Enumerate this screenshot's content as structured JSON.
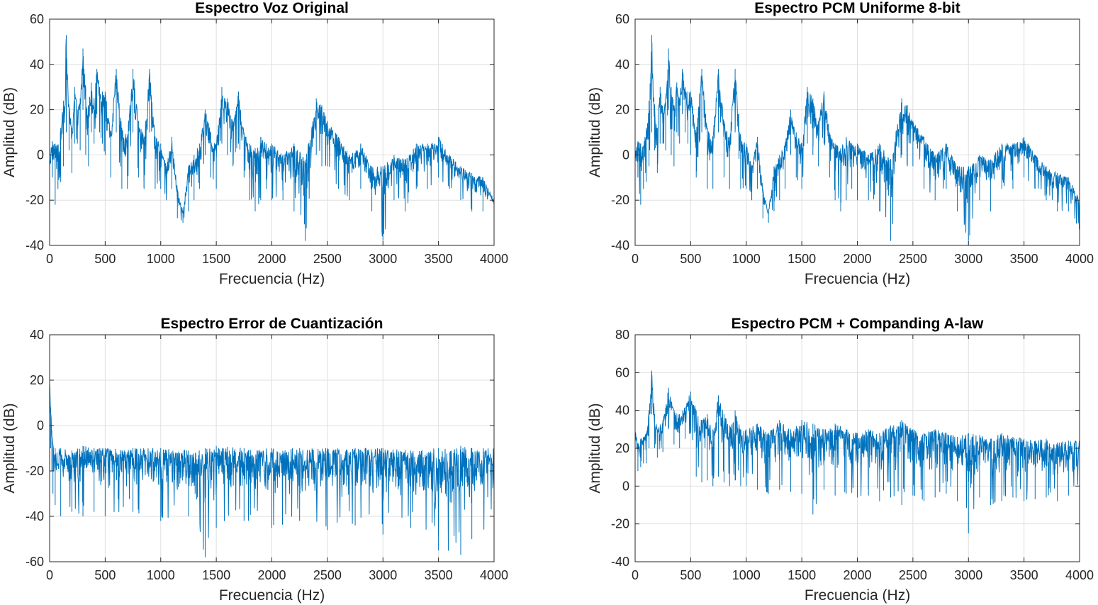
{
  "figure": {
    "background": "#ffffff"
  },
  "chart_data": [
    {
      "type": "line",
      "title": "Espectro Voz Original",
      "xlabel": "Frecuencia (Hz)",
      "ylabel": "Amplitud (dB)",
      "xlim": [
        0,
        4000
      ],
      "ylim": [
        -40,
        60
      ],
      "xticks": [
        0,
        500,
        1000,
        1500,
        2000,
        2500,
        3000,
        3500,
        4000
      ],
      "yticks": [
        -40,
        -20,
        0,
        20,
        40,
        60
      ],
      "grid": true,
      "color": "#0072bd",
      "x": [
        0,
        25,
        50,
        75,
        100,
        125,
        150,
        175,
        200,
        225,
        250,
        275,
        300,
        325,
        350,
        375,
        400,
        425,
        450,
        475,
        500,
        550,
        600,
        650,
        700,
        750,
        800,
        850,
        900,
        950,
        1000,
        1050,
        1100,
        1150,
        1200,
        1250,
        1300,
        1350,
        1400,
        1450,
        1500,
        1550,
        1600,
        1650,
        1700,
        1750,
        1800,
        1850,
        1900,
        1950,
        2000,
        2100,
        2200,
        2300,
        2400,
        2450,
        2500,
        2600,
        2700,
        2800,
        2900,
        3000,
        3100,
        3200,
        3300,
        3400,
        3500,
        3600,
        3700,
        3800,
        3900,
        4000
      ],
      "values": [
        2,
        6,
        5,
        4,
        12,
        24,
        53,
        22,
        12,
        30,
        20,
        25,
        47,
        30,
        22,
        32,
        25,
        38,
        30,
        28,
        28,
        10,
        38,
        12,
        8,
        38,
        15,
        8,
        38,
        8,
        5,
        -5,
        8,
        -15,
        -25,
        -5,
        0,
        5,
        20,
        10,
        5,
        30,
        25,
        15,
        28,
        10,
        5,
        3,
        8,
        5,
        5,
        0,
        5,
        -2,
        25,
        22,
        15,
        8,
        0,
        5,
        -5,
        -5,
        0,
        -2,
        5,
        5,
        8,
        0,
        -5,
        -8,
        -10,
        -20
      ],
      "lower": [
        -20,
        -10,
        -22,
        -15,
        -12,
        -5,
        10,
        2,
        -8,
        5,
        5,
        2,
        20,
        0,
        -5,
        10,
        5,
        18,
        10,
        5,
        0,
        -10,
        10,
        -15,
        -15,
        10,
        -10,
        -15,
        10,
        -15,
        -15,
        -20,
        -15,
        -28,
        -30,
        -25,
        -20,
        -15,
        0,
        -10,
        -15,
        5,
        0,
        -5,
        5,
        -10,
        -20,
        -25,
        -20,
        -15,
        -20,
        -20,
        -25,
        -38,
        0,
        -5,
        -5,
        -15,
        -20,
        -15,
        -25,
        -38,
        -20,
        -25,
        -15,
        -15,
        -10,
        -15,
        -20,
        -25,
        -25,
        -25
      ],
      "annotations": []
    },
    {
      "type": "line",
      "title": "Espectro PCM Uniforme 8-bit",
      "xlabel": "Frecuencia (Hz)",
      "ylabel": "Amplitud (dB)",
      "xlim": [
        0,
        4000
      ],
      "ylim": [
        -40,
        60
      ],
      "xticks": [
        0,
        500,
        1000,
        1500,
        2000,
        2500,
        3000,
        3500,
        4000
      ],
      "yticks": [
        -40,
        -20,
        0,
        20,
        40,
        60
      ],
      "grid": true,
      "color": "#0072bd",
      "x": [
        0,
        25,
        50,
        75,
        100,
        125,
        150,
        175,
        200,
        225,
        250,
        275,
        300,
        325,
        350,
        375,
        400,
        425,
        450,
        475,
        500,
        550,
        600,
        650,
        700,
        750,
        800,
        850,
        900,
        950,
        1000,
        1050,
        1100,
        1150,
        1200,
        1250,
        1300,
        1350,
        1400,
        1450,
        1500,
        1550,
        1600,
        1650,
        1700,
        1750,
        1800,
        1850,
        1900,
        1950,
        2000,
        2100,
        2200,
        2300,
        2400,
        2450,
        2500,
        2600,
        2700,
        2800,
        2900,
        3000,
        3100,
        3200,
        3300,
        3400,
        3500,
        3600,
        3700,
        3800,
        3900,
        4000
      ],
      "values": [
        2,
        6,
        5,
        4,
        12,
        24,
        53,
        22,
        12,
        30,
        20,
        25,
        47,
        30,
        22,
        32,
        25,
        38,
        30,
        28,
        28,
        10,
        38,
        12,
        8,
        38,
        15,
        8,
        38,
        8,
        5,
        -5,
        8,
        -15,
        -25,
        -5,
        0,
        5,
        20,
        10,
        5,
        30,
        25,
        15,
        28,
        10,
        5,
        3,
        8,
        5,
        5,
        0,
        5,
        -2,
        25,
        22,
        15,
        8,
        0,
        5,
        -5,
        -5,
        0,
        -2,
        5,
        5,
        8,
        0,
        -5,
        -8,
        -10,
        -20
      ],
      "lower": [
        -20,
        -10,
        -22,
        -15,
        -12,
        -5,
        10,
        2,
        -8,
        5,
        5,
        2,
        20,
        0,
        -5,
        10,
        5,
        18,
        10,
        5,
        0,
        -10,
        10,
        -15,
        -15,
        10,
        -10,
        -15,
        10,
        -15,
        -15,
        -20,
        -15,
        -28,
        -30,
        -25,
        -20,
        -15,
        0,
        -10,
        -15,
        5,
        0,
        -5,
        5,
        -10,
        -20,
        -25,
        -20,
        -15,
        -20,
        -20,
        -25,
        -38,
        0,
        -5,
        -5,
        -15,
        -20,
        -15,
        -25,
        -38,
        -20,
        -25,
        -15,
        -15,
        -10,
        -15,
        -20,
        -25,
        -25,
        -34
      ],
      "annotations": []
    },
    {
      "type": "line",
      "title": "Espectro Error de Cuantización",
      "xlabel": "Frecuencia (Hz)",
      "ylabel": "Amplitud (dB)",
      "xlim": [
        0,
        4000
      ],
      "ylim": [
        -60,
        40
      ],
      "xticks": [
        0,
        500,
        1000,
        1500,
        2000,
        2500,
        3000,
        3500,
        4000
      ],
      "yticks": [
        -60,
        -40,
        -20,
        0,
        20,
        40
      ],
      "grid": true,
      "color": "#0072bd",
      "x": [
        0,
        10,
        20,
        30,
        50,
        100,
        200,
        300,
        400,
        500,
        750,
        1000,
        1250,
        1400,
        1500,
        1750,
        2000,
        2250,
        2500,
        2750,
        3000,
        3250,
        3500,
        3700,
        3800,
        4000
      ],
      "values": [
        22,
        8,
        -2,
        -8,
        -10,
        -10,
        -11,
        -9,
        -10,
        -10,
        -10,
        -10,
        -11,
        -10,
        -9,
        -10,
        -10,
        -10,
        -10,
        -10,
        -10,
        -11,
        -10,
        -9,
        -10,
        -10
      ],
      "lower": [
        5,
        -10,
        -20,
        -30,
        -35,
        -40,
        -38,
        -40,
        -38,
        -40,
        -38,
        -42,
        -40,
        -58,
        -45,
        -42,
        -45,
        -42,
        -46,
        -44,
        -48,
        -45,
        -55,
        -57,
        -50,
        -45
      ],
      "annotations": []
    },
    {
      "type": "line",
      "title": "Espectro PCM + Companding A-law",
      "xlabel": "Frecuencia (Hz)",
      "ylabel": "Amplitud (dB)",
      "xlim": [
        0,
        4000
      ],
      "ylim": [
        -40,
        80
      ],
      "xticks": [
        0,
        500,
        1000,
        1500,
        2000,
        2500,
        3000,
        3500,
        4000
      ],
      "yticks": [
        -40,
        -20,
        0,
        20,
        40,
        60,
        80
      ],
      "grid": true,
      "color": "#0072bd",
      "x": [
        0,
        25,
        50,
        75,
        100,
        125,
        150,
        175,
        200,
        250,
        300,
        350,
        400,
        450,
        500,
        550,
        600,
        650,
        700,
        750,
        800,
        850,
        900,
        950,
        1000,
        1100,
        1200,
        1300,
        1400,
        1500,
        1600,
        1700,
        1800,
        1900,
        2000,
        2100,
        2200,
        2300,
        2400,
        2500,
        2600,
        2700,
        2800,
        2900,
        3000,
        3100,
        3200,
        3300,
        3400,
        3500,
        3600,
        3700,
        3800,
        3900,
        4000
      ],
      "values": [
        30,
        22,
        25,
        26,
        28,
        40,
        61,
        38,
        30,
        35,
        52,
        40,
        38,
        42,
        50,
        40,
        35,
        38,
        30,
        48,
        38,
        32,
        40,
        30,
        30,
        33,
        28,
        35,
        30,
        35,
        33,
        30,
        33,
        30,
        28,
        30,
        28,
        32,
        35,
        30,
        28,
        30,
        28,
        26,
        28,
        27,
        25,
        28,
        26,
        25,
        24,
        25,
        23,
        24,
        24
      ],
      "lower": [
        15,
        8,
        10,
        12,
        12,
        20,
        38,
        20,
        15,
        18,
        30,
        22,
        20,
        25,
        28,
        5,
        2,
        3,
        0,
        5,
        2,
        0,
        3,
        0,
        0,
        -2,
        -4,
        -2,
        -3,
        -4,
        -15,
        -2,
        -5,
        -4,
        -6,
        -5,
        -8,
        -6,
        -10,
        -5,
        -8,
        -6,
        -4,
        -8,
        -25,
        -6,
        -10,
        -8,
        -6,
        -8,
        -7,
        -6,
        -8,
        -5,
        -6
      ],
      "annotations": []
    }
  ]
}
